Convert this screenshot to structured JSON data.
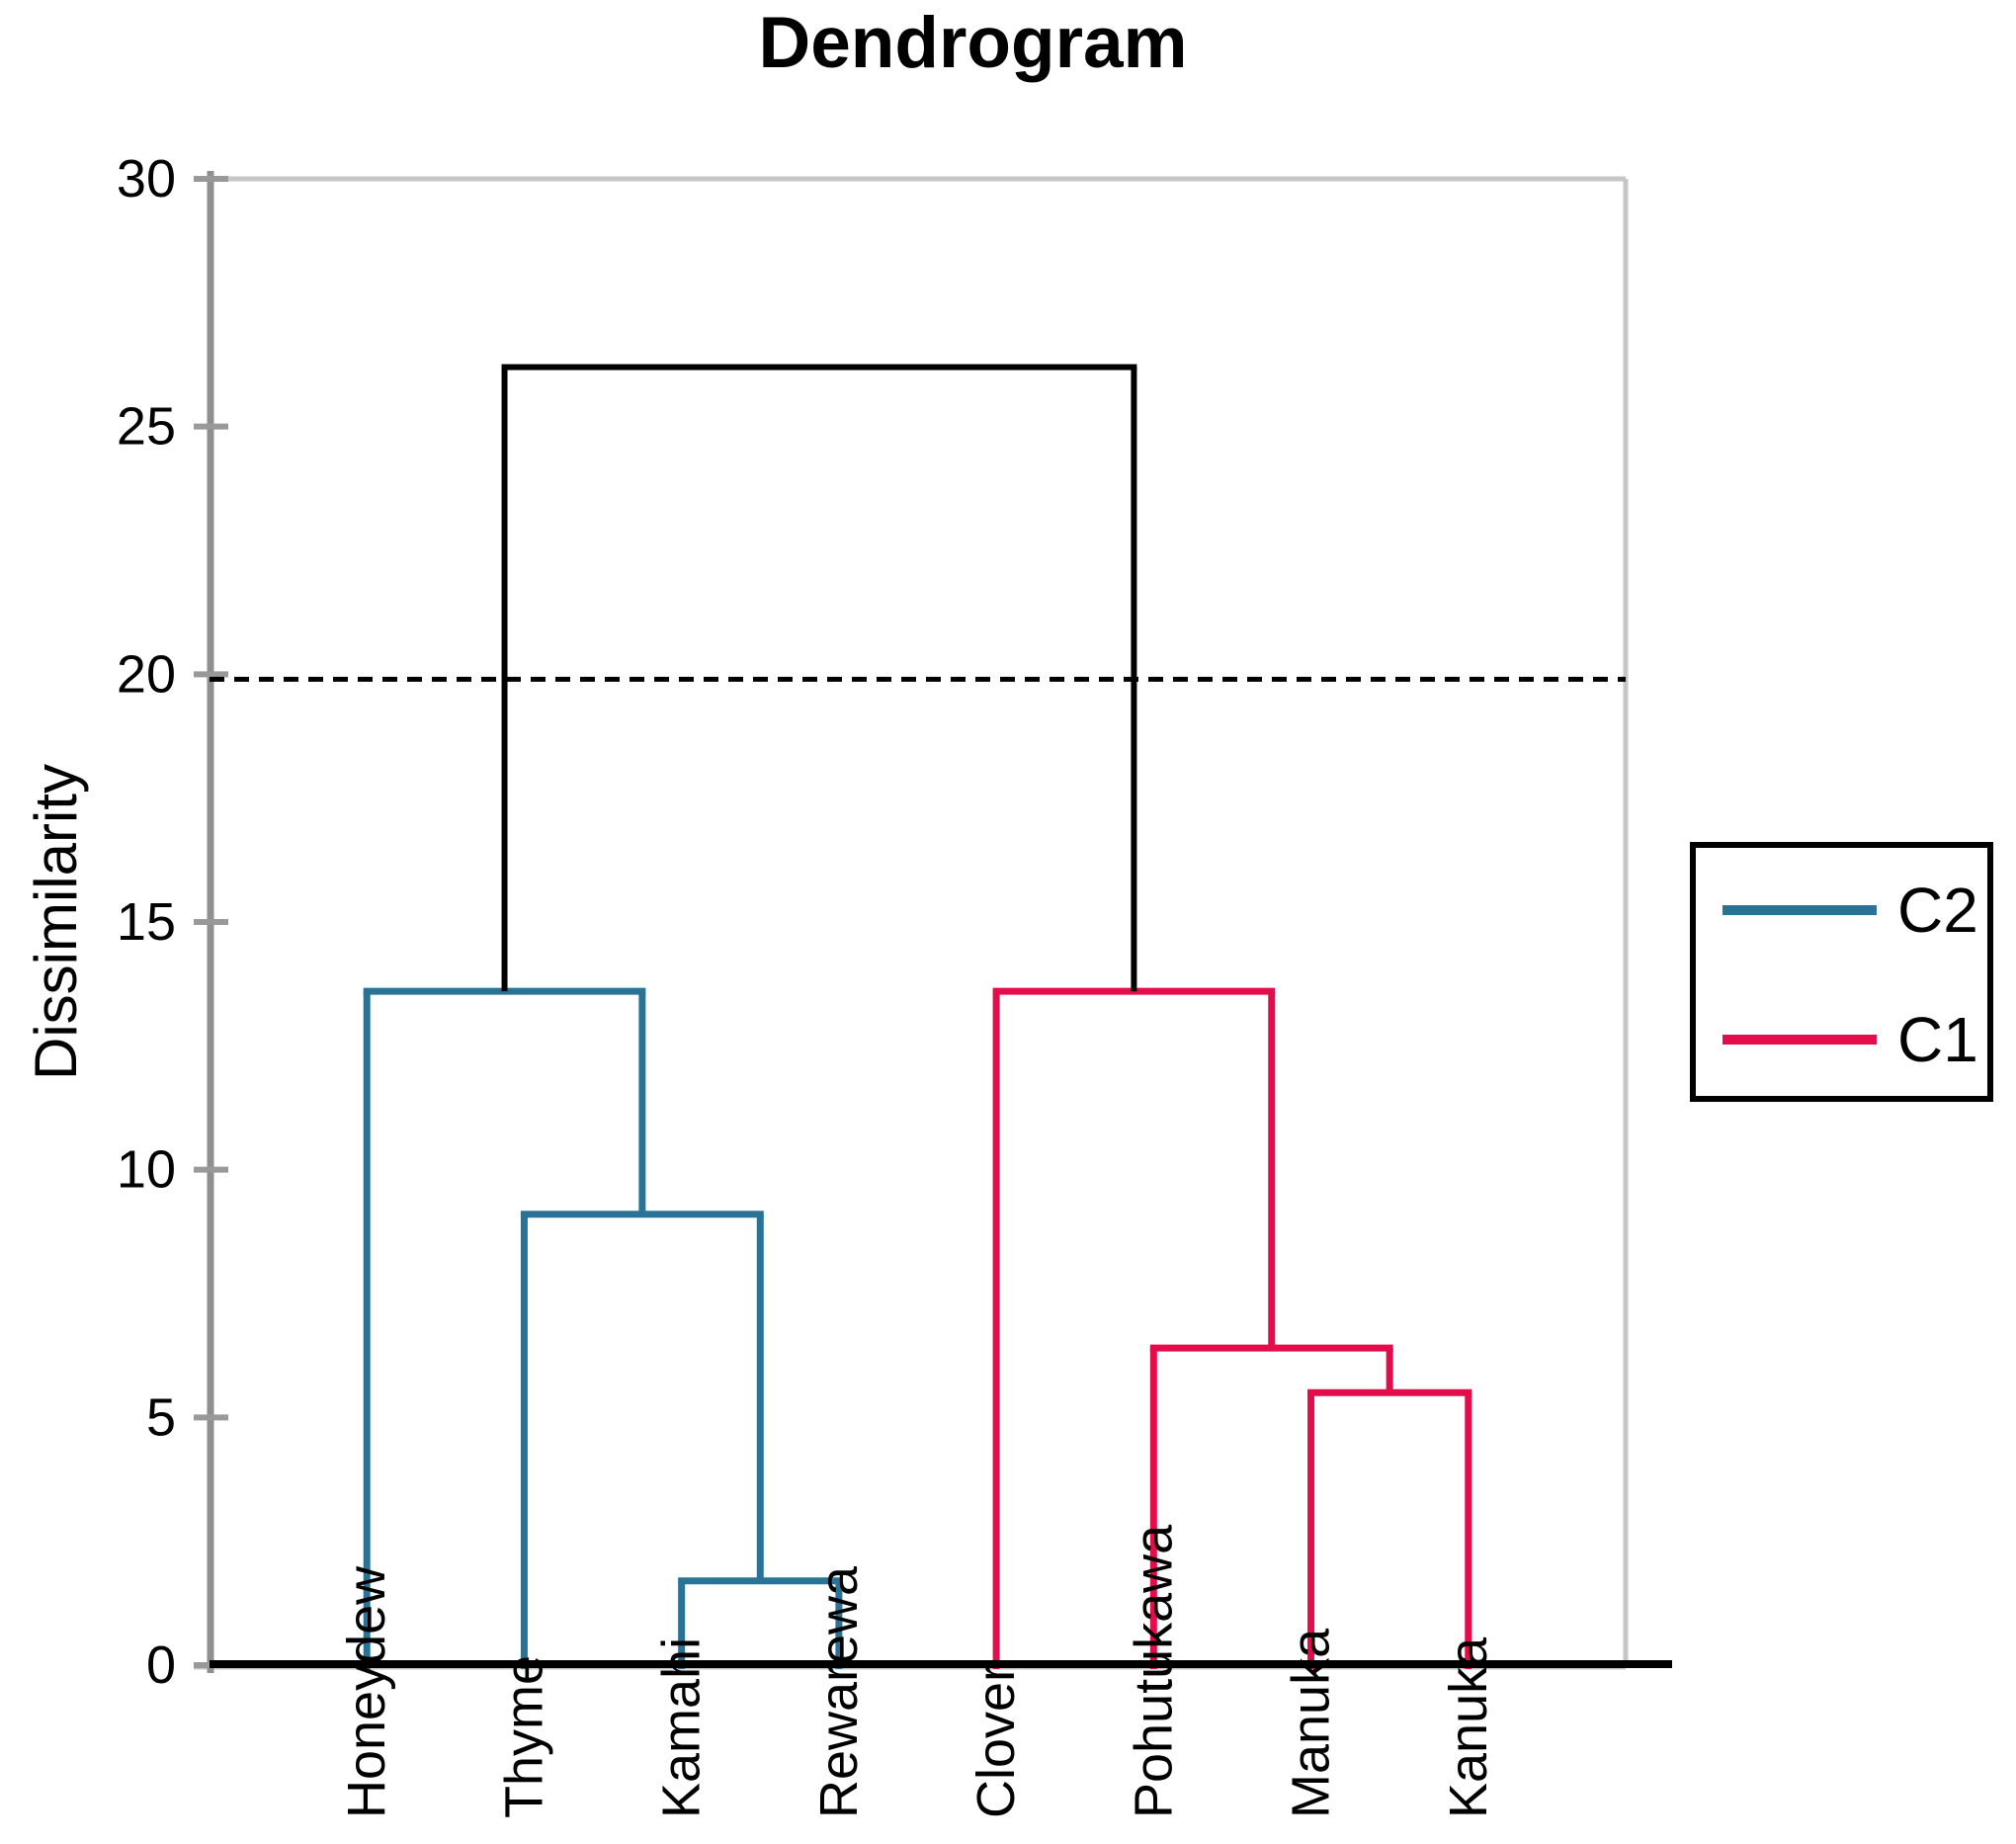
{
  "figure": {
    "title": "Dendrogram",
    "y_axis_label": "Dissimilarity"
  },
  "legend": {
    "entries": [
      {
        "label": "C2",
        "color": "#2A7396"
      },
      {
        "label": "C1",
        "color": "#E40D4C"
      }
    ]
  },
  "colors": {
    "cluster_c2": "#2A7396",
    "cluster_c1": "#E40D4C",
    "root_link": "#000000",
    "axis": "#8F8F8F",
    "tick": "#999999",
    "plot_border": "#C6C6C6",
    "baseline": "#000000",
    "cut_line": "#000000",
    "text": "#000000",
    "background": "#FFFFFF"
  },
  "chart_data": {
    "type": "dendrogram",
    "title": "Dendrogram",
    "ylabel": "Dissimilarity",
    "ylim": [
      0,
      30
    ],
    "yticks": [
      0,
      5,
      10,
      15,
      20,
      25,
      30
    ],
    "grid": false,
    "legend_position": "right",
    "leaves": [
      "Honeydew",
      "Thyme",
      "Kamahi",
      "Rewarewa",
      "Clover",
      "Pohutukawa",
      "Manuka",
      "Kanuka"
    ],
    "clusters": [
      {
        "name": "C2",
        "color": "#2A7396",
        "merges": [
          {
            "left": "Kamahi",
            "right": "Rewarewa",
            "height": 1.7
          },
          {
            "left": "Thyme",
            "right": "@prev",
            "height": 9.1
          },
          {
            "left": "Honeydew",
            "right": "@prev",
            "height": 13.6
          }
        ]
      },
      {
        "name": "C1",
        "color": "#E40D4C",
        "merges": [
          {
            "left": "Manuka",
            "right": "Kanuka",
            "height": 5.5
          },
          {
            "left": "Pohutukawa",
            "right": "@prev",
            "height": 6.4
          },
          {
            "left": "Clover",
            "right": "@prev",
            "height": 13.6
          }
        ]
      }
    ],
    "root": {
      "height": 26.2,
      "color": "#000000"
    },
    "cut_line": {
      "value": 19.9,
      "style": "dashed"
    }
  }
}
